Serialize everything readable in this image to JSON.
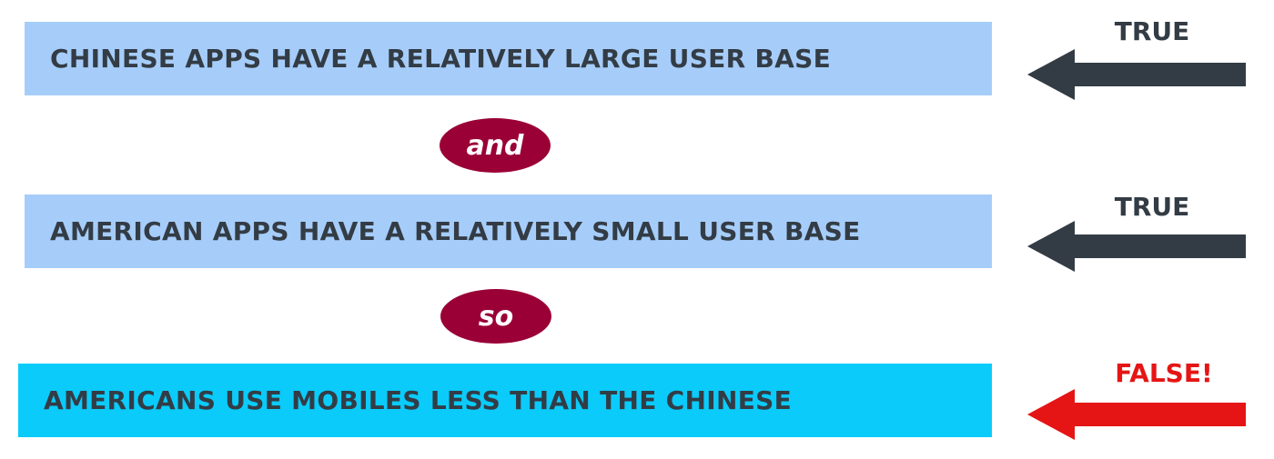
{
  "statements": [
    {
      "text": "CHINESE APPS HAVE A RELATIVELY LARGE USER BASE",
      "verdict": "TRUE"
    },
    {
      "text": "AMERICAN APPS HAVE A RELATIVELY SMALL USER BASE",
      "verdict": "TRUE"
    },
    {
      "text": "AMERICANS USE MOBILES LESS THAN THE CHINESE",
      "verdict": "FALSE!"
    }
  ],
  "connectors": [
    "and",
    "so"
  ],
  "colors": {
    "premise_box": "#a6cdfa",
    "conclusion_box": "#0acbfa",
    "connector": "#9a0036",
    "true_arrow": "#333c45",
    "false_arrow": "#e51515",
    "text": "#333c45"
  }
}
